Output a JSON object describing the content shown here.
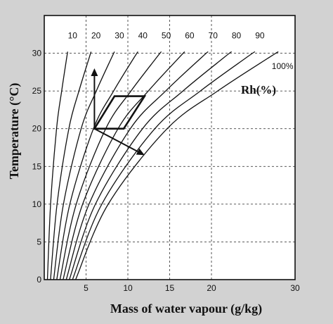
{
  "chart_data": {
    "type": "line",
    "title": "",
    "xlabel": "Mass of water vapour (g/kg)",
    "ylabel": "Temperature (°C)",
    "xlim": [
      0,
      30
    ],
    "ylim": [
      0,
      35
    ],
    "x_ticks": [
      5,
      10,
      15,
      20,
      30
    ],
    "y_ticks": [
      0,
      5,
      10,
      15,
      20,
      25,
      30
    ],
    "grid": true,
    "grid_style": "dashed",
    "curve_label_unit": "Rh(%)",
    "saturation_label": "100%",
    "colors": {
      "background": "#d2d2d2",
      "plot_area": "#ffffff",
      "ink": "#111111"
    },
    "series": [
      {
        "name": "10",
        "values": [
          [
            0.38,
            0
          ],
          [
            0.76,
            10
          ],
          [
            1.47,
            20
          ],
          [
            2.08,
            25
          ],
          [
            2.7,
            29.5
          ],
          [
            2.8,
            30.2
          ]
        ]
      },
      {
        "name": "20",
        "values": [
          [
            0.75,
            0
          ],
          [
            1.53,
            10
          ],
          [
            2.94,
            20
          ],
          [
            4.15,
            25
          ],
          [
            5.4,
            29.5
          ],
          [
            5.6,
            30.2
          ]
        ]
      },
      {
        "name": "30",
        "values": [
          [
            1.13,
            0
          ],
          [
            2.29,
            10
          ],
          [
            4.41,
            20
          ],
          [
            6.23,
            25
          ],
          [
            8.09,
            29.5
          ],
          [
            8.4,
            30.2
          ]
        ]
      },
      {
        "name": "40",
        "values": [
          [
            1.5,
            0
          ],
          [
            3.06,
            10
          ],
          [
            5.88,
            20
          ],
          [
            8.3,
            25
          ],
          [
            10.79,
            29.5
          ],
          [
            11.2,
            30.2
          ]
        ]
      },
      {
        "name": "50",
        "values": [
          [
            1.88,
            0
          ],
          [
            3.82,
            10
          ],
          [
            7.35,
            20
          ],
          [
            10.38,
            25
          ],
          [
            13.49,
            29.5
          ],
          [
            14.0,
            30.2
          ]
        ]
      },
      {
        "name": "60",
        "values": [
          [
            2.25,
            0
          ],
          [
            4.59,
            10
          ],
          [
            8.82,
            20
          ],
          [
            12.45,
            25
          ],
          [
            16.19,
            29.5
          ],
          [
            16.8,
            30.2
          ]
        ]
      },
      {
        "name": "70",
        "values": [
          [
            2.63,
            0
          ],
          [
            5.35,
            10
          ],
          [
            10.29,
            20
          ],
          [
            14.53,
            25
          ],
          [
            18.88,
            29.5
          ],
          [
            19.6,
            30.2
          ]
        ]
      },
      {
        "name": "80",
        "values": [
          [
            3.0,
            0
          ],
          [
            6.12,
            10
          ],
          [
            11.76,
            20
          ],
          [
            16.6,
            25
          ],
          [
            21.58,
            29.5
          ],
          [
            22.4,
            30.2
          ]
        ]
      },
      {
        "name": "90",
        "values": [
          [
            3.38,
            0
          ],
          [
            6.88,
            10
          ],
          [
            13.23,
            20
          ],
          [
            18.68,
            25
          ],
          [
            24.28,
            29.5
          ],
          [
            25.2,
            30.2
          ]
        ]
      },
      {
        "name": "100%",
        "values": [
          [
            3.75,
            0
          ],
          [
            7.65,
            10
          ],
          [
            14.7,
            20
          ],
          [
            20.75,
            25
          ],
          [
            26.98,
            29.5
          ],
          [
            28.0,
            30.2
          ]
        ]
      }
    ],
    "annotations": {
      "parallelogram": [
        [
          6,
          20
        ],
        [
          9.5,
          20
        ],
        [
          12,
          24.3
        ],
        [
          8.4,
          24.3
        ]
      ],
      "arrow_up": {
        "from": [
          6,
          20
        ],
        "to": [
          6,
          28
        ]
      },
      "arrow_down_right": {
        "from": [
          6,
          20
        ],
        "to": [
          12,
          16.5
        ]
      }
    }
  }
}
